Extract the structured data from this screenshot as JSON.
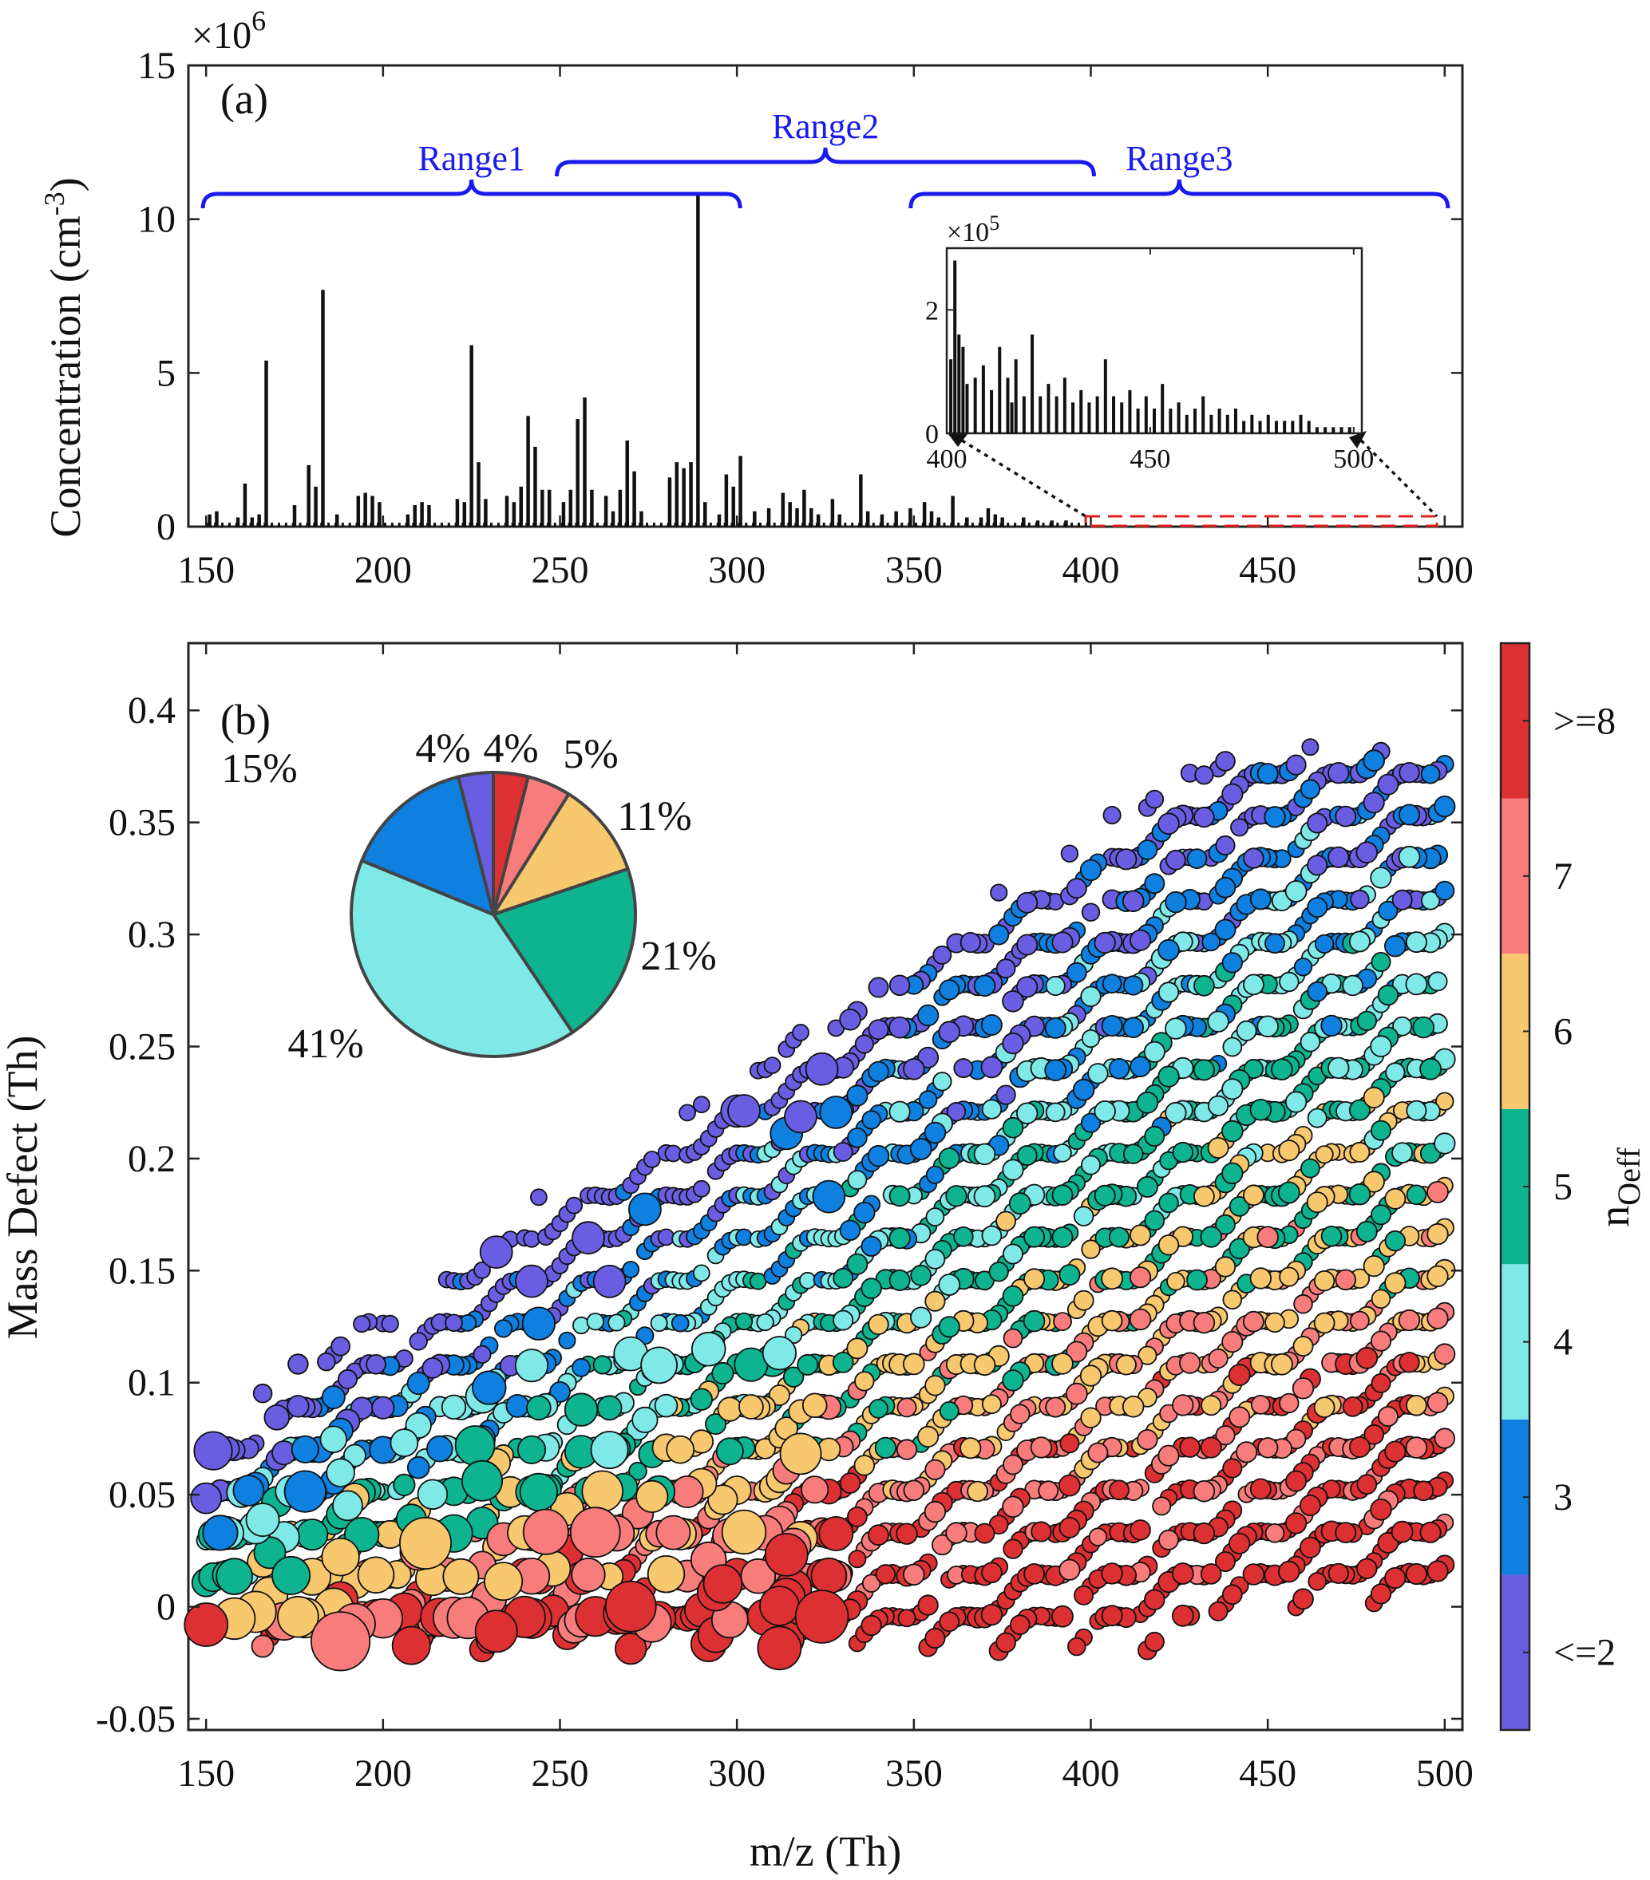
{
  "chart_data": [
    {
      "panel": "(a)",
      "type": "bar",
      "ylabel": "Concentration (cm",
      "ylabel_sup": "-3",
      "y_exponent": "×10",
      "y_exponent_sup": "6",
      "xlim": [
        145,
        505
      ],
      "ylim": [
        0,
        15
      ],
      "xticks": [
        "150",
        "200",
        "250",
        "300",
        "350",
        "400",
        "450",
        "500"
      ],
      "yticks": [
        "0",
        "5",
        "10",
        "15"
      ],
      "ranges": [
        {
          "label": "Range1",
          "from": 150,
          "to": 300
        },
        {
          "label": "Range2",
          "from": 250,
          "to": 400
        },
        {
          "label": "Range3",
          "from": 350,
          "to": 500
        }
      ],
      "peaks": [
        {
          "x": 151,
          "y": 0.4
        },
        {
          "x": 153,
          "y": 0.5
        },
        {
          "x": 159,
          "y": 0.3
        },
        {
          "x": 161,
          "y": 1.4
        },
        {
          "x": 163,
          "y": 0.3
        },
        {
          "x": 165,
          "y": 0.4
        },
        {
          "x": 167,
          "y": 5.4
        },
        {
          "x": 175,
          "y": 0.7
        },
        {
          "x": 179,
          "y": 2.0
        },
        {
          "x": 181,
          "y": 1.3
        },
        {
          "x": 183,
          "y": 7.7
        },
        {
          "x": 187,
          "y": 0.4
        },
        {
          "x": 193,
          "y": 1.0
        },
        {
          "x": 195,
          "y": 1.1
        },
        {
          "x": 197,
          "y": 1.0
        },
        {
          "x": 199,
          "y": 0.8
        },
        {
          "x": 207,
          "y": 0.4
        },
        {
          "x": 209,
          "y": 0.7
        },
        {
          "x": 211,
          "y": 0.8
        },
        {
          "x": 213,
          "y": 0.7
        },
        {
          "x": 221,
          "y": 0.9
        },
        {
          "x": 223,
          "y": 0.8
        },
        {
          "x": 225,
          "y": 5.9
        },
        {
          "x": 227,
          "y": 2.1
        },
        {
          "x": 229,
          "y": 0.9
        },
        {
          "x": 235,
          "y": 1.0
        },
        {
          "x": 237,
          "y": 0.8
        },
        {
          "x": 239,
          "y": 1.3
        },
        {
          "x": 241,
          "y": 3.6
        },
        {
          "x": 243,
          "y": 2.6
        },
        {
          "x": 245,
          "y": 1.2
        },
        {
          "x": 247,
          "y": 1.2
        },
        {
          "x": 251,
          "y": 0.8
        },
        {
          "x": 253,
          "y": 1.2
        },
        {
          "x": 255,
          "y": 3.5
        },
        {
          "x": 257,
          "y": 4.2
        },
        {
          "x": 259,
          "y": 1.2
        },
        {
          "x": 263,
          "y": 1.0
        },
        {
          "x": 265,
          "y": 0.5
        },
        {
          "x": 267,
          "y": 1.2
        },
        {
          "x": 269,
          "y": 2.8
        },
        {
          "x": 271,
          "y": 1.8
        },
        {
          "x": 273,
          "y": 0.5
        },
        {
          "x": 281,
          "y": 1.6
        },
        {
          "x": 283,
          "y": 2.1
        },
        {
          "x": 285,
          "y": 1.9
        },
        {
          "x": 287,
          "y": 2.1
        },
        {
          "x": 289,
          "y": 10.8
        },
        {
          "x": 291,
          "y": 0.8
        },
        {
          "x": 295,
          "y": 0.4
        },
        {
          "x": 297,
          "y": 1.7
        },
        {
          "x": 299,
          "y": 1.3
        },
        {
          "x": 301,
          "y": 2.3
        },
        {
          "x": 305,
          "y": 0.5
        },
        {
          "x": 309,
          "y": 0.6
        },
        {
          "x": 313,
          "y": 1.1
        },
        {
          "x": 315,
          "y": 0.8
        },
        {
          "x": 317,
          "y": 0.6
        },
        {
          "x": 319,
          "y": 1.2
        },
        {
          "x": 321,
          "y": 0.6
        },
        {
          "x": 323,
          "y": 0.4
        },
        {
          "x": 327,
          "y": 0.9
        },
        {
          "x": 329,
          "y": 0.4
        },
        {
          "x": 335,
          "y": 1.7
        },
        {
          "x": 337,
          "y": 0.5
        },
        {
          "x": 341,
          "y": 0.4
        },
        {
          "x": 345,
          "y": 0.5
        },
        {
          "x": 349,
          "y": 0.6
        },
        {
          "x": 353,
          "y": 0.8
        },
        {
          "x": 355,
          "y": 0.5
        },
        {
          "x": 357,
          "y": 0.3
        },
        {
          "x": 361,
          "y": 1.0
        },
        {
          "x": 365,
          "y": 0.3
        },
        {
          "x": 369,
          "y": 0.3
        },
        {
          "x": 371,
          "y": 0.6
        },
        {
          "x": 373,
          "y": 0.4
        },
        {
          "x": 375,
          "y": 0.3
        },
        {
          "x": 381,
          "y": 0.3
        },
        {
          "x": 385,
          "y": 0.2
        },
        {
          "x": 389,
          "y": 0.2
        },
        {
          "x": 393,
          "y": 0.2
        }
      ],
      "inset": {
        "y_exponent": "×10",
        "y_exponent_sup": "5",
        "xlim": [
          400,
          502
        ],
        "ylim": [
          0,
          3
        ],
        "xticks": [
          "400",
          "450",
          "500"
        ],
        "yticks": [
          "0",
          "2"
        ],
        "peaks": [
          {
            "x": 401,
            "y": 1.2
          },
          {
            "x": 402,
            "y": 2.8
          },
          {
            "x": 403,
            "y": 1.6
          },
          {
            "x": 404,
            "y": 1.4
          },
          {
            "x": 405,
            "y": 0.8
          },
          {
            "x": 407,
            "y": 0.9
          },
          {
            "x": 409,
            "y": 1.1
          },
          {
            "x": 411,
            "y": 0.7
          },
          {
            "x": 413,
            "y": 1.4
          },
          {
            "x": 415,
            "y": 0.9
          },
          {
            "x": 416,
            "y": 0.5
          },
          {
            "x": 417,
            "y": 1.2
          },
          {
            "x": 419,
            "y": 0.6
          },
          {
            "x": 421,
            "y": 1.6
          },
          {
            "x": 423,
            "y": 0.6
          },
          {
            "x": 425,
            "y": 0.8
          },
          {
            "x": 427,
            "y": 0.6
          },
          {
            "x": 429,
            "y": 0.9
          },
          {
            "x": 431,
            "y": 0.5
          },
          {
            "x": 433,
            "y": 0.7
          },
          {
            "x": 435,
            "y": 0.5
          },
          {
            "x": 437,
            "y": 0.6
          },
          {
            "x": 439,
            "y": 1.2
          },
          {
            "x": 441,
            "y": 0.6
          },
          {
            "x": 443,
            "y": 0.5
          },
          {
            "x": 445,
            "y": 0.7
          },
          {
            "x": 447,
            "y": 0.4
          },
          {
            "x": 449,
            "y": 0.6
          },
          {
            "x": 451,
            "y": 0.4
          },
          {
            "x": 453,
            "y": 0.8
          },
          {
            "x": 455,
            "y": 0.4
          },
          {
            "x": 457,
            "y": 0.5
          },
          {
            "x": 459,
            "y": 0.3
          },
          {
            "x": 461,
            "y": 0.4
          },
          {
            "x": 463,
            "y": 0.6
          },
          {
            "x": 465,
            "y": 0.3
          },
          {
            "x": 467,
            "y": 0.4
          },
          {
            "x": 469,
            "y": 0.3
          },
          {
            "x": 471,
            "y": 0.4
          },
          {
            "x": 473,
            "y": 0.2
          },
          {
            "x": 475,
            "y": 0.3
          },
          {
            "x": 477,
            "y": 0.2
          },
          {
            "x": 479,
            "y": 0.3
          },
          {
            "x": 481,
            "y": 0.2
          },
          {
            "x": 483,
            "y": 0.2
          },
          {
            "x": 485,
            "y": 0.2
          },
          {
            "x": 487,
            "y": 0.3
          },
          {
            "x": 489,
            "y": 0.2
          },
          {
            "x": 491,
            "y": 0.1
          },
          {
            "x": 493,
            "y": 0.1
          },
          {
            "x": 495,
            "y": 0.1
          },
          {
            "x": 497,
            "y": 0.1
          },
          {
            "x": 499,
            "y": 0.1
          }
        ]
      }
    },
    {
      "panel": "(b)",
      "type": "scatter",
      "xlabel": "m/z (Th)",
      "ylabel": "Mass Defect (Th)",
      "xlim": [
        145,
        505
      ],
      "ylim": [
        -0.055,
        0.43
      ],
      "xticks": [
        "150",
        "200",
        "250",
        "300",
        "350",
        "400",
        "450",
        "500"
      ],
      "yticks": [
        "-0.05",
        "0",
        "0.05",
        "0.1",
        "0.15",
        "0.2",
        "0.25",
        "0.3",
        "0.35",
        "0.4"
      ],
      "colorbar": {
        "title": "n",
        "title_sub": "Oeff",
        "levels": [
          {
            "label": "<=2",
            "color": "#6b5de2"
          },
          {
            "label": "3",
            "color": "#0f7fe0"
          },
          {
            "label": "4",
            "color": "#7fe9e8"
          },
          {
            "label": "5",
            "color": "#0eb48f"
          },
          {
            "label": "6",
            "color": "#f8c86f"
          },
          {
            "label": "7",
            "color": "#f87c7c"
          },
          {
            "label": ">=8",
            "color": "#dd3033"
          }
        ]
      },
      "series_rule": "Homologous series: points every 2 Th along lines of slope ≈ +0.0009 Th/Th, lines spaced ≈ 0.0188 Th in mass defect; marker size ∝ concentration; oxygen content rises with decreasing mass defect.",
      "pie": {
        "slices": [
          {
            "label": "4%",
            "value": 4,
            "color": "#dd3033"
          },
          {
            "label": "5%",
            "value": 5,
            "color": "#f87c7c"
          },
          {
            "label": "11%",
            "value": 11,
            "color": "#f8c86f"
          },
          {
            "label": "21%",
            "value": 21,
            "color": "#0eb48f"
          },
          {
            "label": "41%",
            "value": 41,
            "color": "#7fe9e8"
          },
          {
            "label": "15%",
            "value": 15,
            "color": "#0f7fe0"
          },
          {
            "label": "4%",
            "value": 4,
            "color": "#6b5de2"
          }
        ]
      }
    }
  ]
}
